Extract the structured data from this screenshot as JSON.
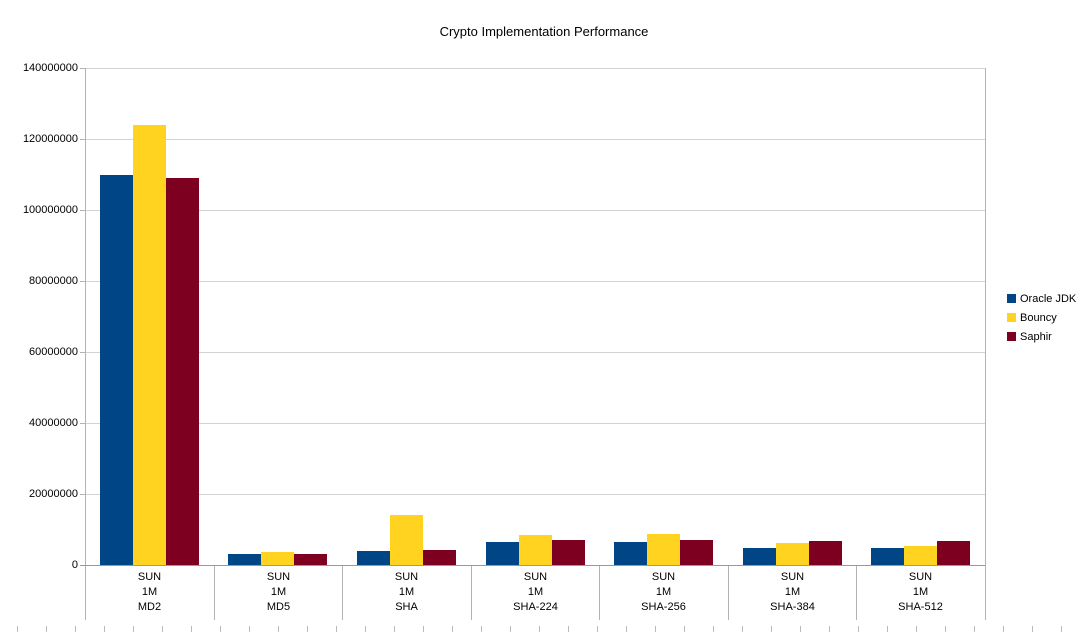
{
  "chart_data": {
    "type": "bar",
    "title": "Crypto Implementation Performance",
    "categories": [
      [
        "SUN",
        "1M",
        "MD2"
      ],
      [
        "SUN",
        "1M",
        "MD5"
      ],
      [
        "SUN",
        "1M",
        "SHA"
      ],
      [
        "SUN",
        "1M",
        "SHA-224"
      ],
      [
        "SUN",
        "1M",
        "SHA-256"
      ],
      [
        "SUN",
        "1M",
        "SHA-384"
      ],
      [
        "SUN",
        "1M",
        "SHA-512"
      ]
    ],
    "series": [
      {
        "name": "Oracle JDK",
        "color": "#004586",
        "values": [
          110000000,
          3000000,
          4000000,
          6500000,
          6600000,
          4800000,
          4800000
        ]
      },
      {
        "name": "Bouncy",
        "color": "#ffd320",
        "values": [
          124000000,
          3700000,
          14000000,
          8400000,
          8600000,
          6100000,
          5400000
        ]
      },
      {
        "name": "Saphir",
        "color": "#7e0021",
        "values": [
          109000000,
          3200000,
          4100000,
          7000000,
          7000000,
          6800000,
          6800000
        ]
      }
    ],
    "ylim": [
      0,
      140000000
    ],
    "yticks": [
      0,
      20000000,
      40000000,
      60000000,
      80000000,
      100000000,
      120000000,
      140000000
    ],
    "xlabel": "",
    "ylabel": "",
    "grid": true,
    "legend_position": "right"
  },
  "colors": {
    "gridline": "#d3d3d3",
    "axis": "#b3b3b3",
    "text": "#000000",
    "background": "#ffffff"
  }
}
